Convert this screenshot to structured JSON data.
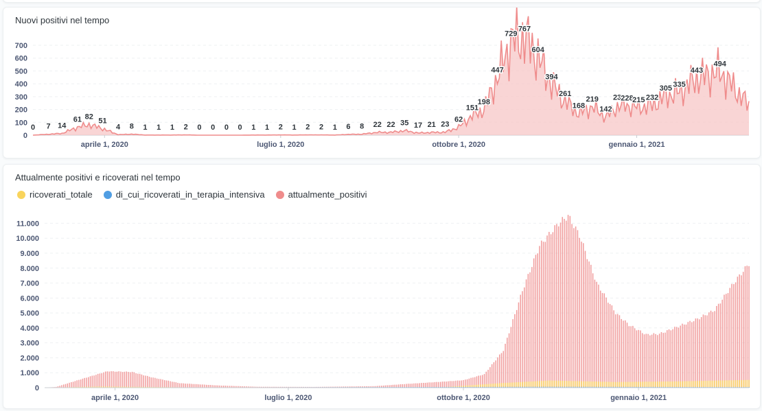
{
  "colors": {
    "ricoverati_totale": "#f9d45c",
    "terapia_intensiva": "#509ee3",
    "attualmente_positivi": "#ef8c8c",
    "area_fill": "#f7c7c7"
  },
  "chart_data": [
    {
      "type": "area",
      "title": "Nuovi positivi nel tempo",
      "y_ticks": [
        0,
        100,
        200,
        300,
        400,
        500,
        600,
        700
      ],
      "ylim": [
        0,
        780
      ],
      "x_ticks": [
        "aprile 1, 2020",
        "luglio 1, 2020",
        "ottobre 1, 2020",
        "gennaio 1, 2021"
      ],
      "x_range": [
        "2020-02-24",
        "2021-02-28"
      ],
      "x_tick_dates": [
        "2020-04-01",
        "2020-07-01",
        "2020-10-01",
        "2021-01-01"
      ],
      "series": [
        {
          "values_keypoints": [
            [
              "2020-02-24",
              0
            ],
            [
              "2020-03-03",
              7
            ],
            [
              "2020-03-10",
              14
            ],
            [
              "2020-03-18",
              61
            ],
            [
              "2020-03-24",
              82
            ],
            [
              "2020-03-31",
              51
            ],
            [
              "2020-04-08",
              4
            ],
            [
              "2020-04-15",
              8
            ],
            [
              "2020-04-22",
              1
            ],
            [
              "2020-04-29",
              1
            ],
            [
              "2020-05-06",
              1
            ],
            [
              "2020-05-13",
              2
            ],
            [
              "2020-05-20",
              0
            ],
            [
              "2020-05-27",
              0
            ],
            [
              "2020-06-03",
              0
            ],
            [
              "2020-06-10",
              0
            ],
            [
              "2020-06-17",
              1
            ],
            [
              "2020-06-24",
              1
            ],
            [
              "2020-07-01",
              2
            ],
            [
              "2020-07-08",
              1
            ],
            [
              "2020-07-15",
              2
            ],
            [
              "2020-07-22",
              2
            ],
            [
              "2020-07-29",
              1
            ],
            [
              "2020-08-05",
              6
            ],
            [
              "2020-08-12",
              8
            ],
            [
              "2020-08-20",
              22
            ],
            [
              "2020-08-27",
              22
            ],
            [
              "2020-09-03",
              35
            ],
            [
              "2020-09-10",
              17
            ],
            [
              "2020-09-17",
              21
            ],
            [
              "2020-09-24",
              23
            ],
            [
              "2020-10-01",
              62
            ],
            [
              "2020-10-08",
              151
            ],
            [
              "2020-10-14",
              198
            ],
            [
              "2020-10-21",
              447
            ],
            [
              "2020-10-28",
              729
            ],
            [
              "2020-11-04",
              767
            ],
            [
              "2020-11-11",
              604
            ],
            [
              "2020-11-18",
              394
            ],
            [
              "2020-11-25",
              261
            ],
            [
              "2020-12-02",
              168
            ],
            [
              "2020-12-09",
              219
            ],
            [
              "2020-12-16",
              142
            ],
            [
              "2020-12-23",
              232
            ],
            [
              "2020-12-27",
              228
            ],
            [
              "2021-01-02",
              215
            ],
            [
              "2021-01-09",
              232
            ],
            [
              "2021-01-16",
              305
            ],
            [
              "2021-01-23",
              335
            ],
            [
              "2021-02-01",
              443
            ],
            [
              "2021-02-13",
              494
            ],
            [
              "2021-02-28",
              230
            ]
          ]
        }
      ],
      "data_labels": [
        {
          "x": "2020-02-24",
          "label": "0"
        },
        {
          "x": "2020-03-03",
          "label": "7"
        },
        {
          "x": "2020-03-10",
          "label": "14"
        },
        {
          "x": "2020-03-18",
          "label": "61"
        },
        {
          "x": "2020-03-24",
          "label": "82"
        },
        {
          "x": "2020-03-31",
          "label": "51"
        },
        {
          "x": "2020-04-08",
          "label": "4"
        },
        {
          "x": "2020-04-15",
          "label": "8"
        },
        {
          "x": "2020-04-22",
          "label": "1"
        },
        {
          "x": "2020-04-29",
          "label": "1"
        },
        {
          "x": "2020-05-06",
          "label": "1"
        },
        {
          "x": "2020-05-13",
          "label": "2"
        },
        {
          "x": "2020-05-20",
          "label": "0"
        },
        {
          "x": "2020-05-27",
          "label": "0"
        },
        {
          "x": "2020-06-03",
          "label": "0"
        },
        {
          "x": "2020-06-10",
          "label": "0"
        },
        {
          "x": "2020-06-17",
          "label": "1"
        },
        {
          "x": "2020-06-24",
          "label": "1"
        },
        {
          "x": "2020-07-01",
          "label": "2"
        },
        {
          "x": "2020-07-08",
          "label": "1"
        },
        {
          "x": "2020-07-15",
          "label": "2"
        },
        {
          "x": "2020-07-22",
          "label": "2"
        },
        {
          "x": "2020-07-29",
          "label": "1"
        },
        {
          "x": "2020-08-05",
          "label": "6"
        },
        {
          "x": "2020-08-12",
          "label": "8"
        },
        {
          "x": "2020-08-20",
          "label": "22"
        },
        {
          "x": "2020-08-27",
          "label": "22"
        },
        {
          "x": "2020-09-03",
          "label": "35"
        },
        {
          "x": "2020-09-10",
          "label": "17"
        },
        {
          "x": "2020-09-17",
          "label": "21"
        },
        {
          "x": "2020-09-24",
          "label": "23"
        },
        {
          "x": "2020-10-01",
          "label": "62"
        },
        {
          "x": "2020-10-08",
          "label": "151"
        },
        {
          "x": "2020-10-14",
          "label": "198"
        },
        {
          "x": "2020-10-21",
          "label": "447"
        },
        {
          "x": "2020-10-28",
          "label": "729"
        },
        {
          "x": "2020-11-04",
          "label": "767"
        },
        {
          "x": "2020-11-11",
          "label": "604"
        },
        {
          "x": "2020-11-18",
          "label": "394"
        },
        {
          "x": "2020-11-25",
          "label": "261"
        },
        {
          "x": "2020-12-02",
          "label": "168"
        },
        {
          "x": "2020-12-09",
          "label": "219"
        },
        {
          "x": "2020-12-16",
          "label": "142"
        },
        {
          "x": "2020-12-23",
          "label": "232"
        },
        {
          "x": "2020-12-27",
          "label": "228"
        },
        {
          "x": "2021-01-02",
          "label": "215"
        },
        {
          "x": "2021-01-09",
          "label": "232"
        },
        {
          "x": "2021-01-16",
          "label": "305"
        },
        {
          "x": "2021-01-23",
          "label": "335"
        },
        {
          "x": "2021-02-01",
          "label": "443"
        },
        {
          "x": "2021-02-13",
          "label": "494"
        }
      ],
      "grid": true
    },
    {
      "type": "bar",
      "title": "Attualmente positivi e ricoverati nel tempo",
      "legend_position": "top-left",
      "y_ticks": [
        "0",
        "1.000",
        "2.000",
        "3.000",
        "4.000",
        "5.000",
        "6.000",
        "7.000",
        "8.000",
        "9.000",
        "10.000",
        "11.000"
      ],
      "ylim": [
        0,
        11800
      ],
      "x_ticks": [
        "aprile 1, 2020",
        "luglio 1, 2020",
        "ottobre 1, 2020",
        "gennaio 1, 2021"
      ],
      "x_range": [
        "2020-02-24",
        "2021-02-28"
      ],
      "x_tick_dates": [
        "2020-04-01",
        "2020-07-01",
        "2020-10-01",
        "2021-01-01"
      ],
      "grid": true,
      "series": [
        {
          "name": "ricoverati_totale",
          "values_keypoints": [
            [
              "2020-02-24",
              0
            ],
            [
              "2020-03-25",
              80
            ],
            [
              "2020-05-10",
              20
            ],
            [
              "2020-06-10",
              0
            ],
            [
              "2020-09-20",
              30
            ],
            [
              "2020-10-20",
              300
            ],
            [
              "2020-11-15",
              480
            ],
            [
              "2020-12-20",
              380
            ],
            [
              "2021-01-20",
              420
            ],
            [
              "2021-02-28",
              520
            ]
          ]
        },
        {
          "name": "di_cui_ricoverati_in_terapia_intensiva",
          "values_keypoints": [
            [
              "2020-02-24",
              0
            ],
            [
              "2020-11-15",
              60
            ],
            [
              "2021-02-28",
              40
            ]
          ]
        },
        {
          "name": "attualmente_positivi",
          "values_keypoints": [
            [
              "2020-02-24",
              0
            ],
            [
              "2020-03-01",
              50
            ],
            [
              "2020-03-15",
              600
            ],
            [
              "2020-03-28",
              1100
            ],
            [
              "2020-04-10",
              1050
            ],
            [
              "2020-04-20",
              700
            ],
            [
              "2020-05-05",
              300
            ],
            [
              "2020-05-25",
              150
            ],
            [
              "2020-06-15",
              60
            ],
            [
              "2020-07-15",
              50
            ],
            [
              "2020-08-15",
              100
            ],
            [
              "2020-09-01",
              250
            ],
            [
              "2020-09-20",
              400
            ],
            [
              "2020-10-01",
              500
            ],
            [
              "2020-10-12",
              900
            ],
            [
              "2020-10-22",
              2500
            ],
            [
              "2020-11-01",
              6500
            ],
            [
              "2020-11-10",
              9500
            ],
            [
              "2020-11-20",
              11000
            ],
            [
              "2020-11-25",
              11500
            ],
            [
              "2020-12-01",
              10200
            ],
            [
              "2020-12-10",
              7000
            ],
            [
              "2020-12-20",
              5000
            ],
            [
              "2020-12-27",
              4200
            ],
            [
              "2021-01-05",
              3550
            ],
            [
              "2021-01-12",
              3600
            ],
            [
              "2021-01-20",
              4000
            ],
            [
              "2021-02-01",
              4600
            ],
            [
              "2021-02-10",
              5200
            ],
            [
              "2021-02-20",
              7000
            ],
            [
              "2021-02-28",
              8300
            ]
          ]
        }
      ]
    }
  ]
}
